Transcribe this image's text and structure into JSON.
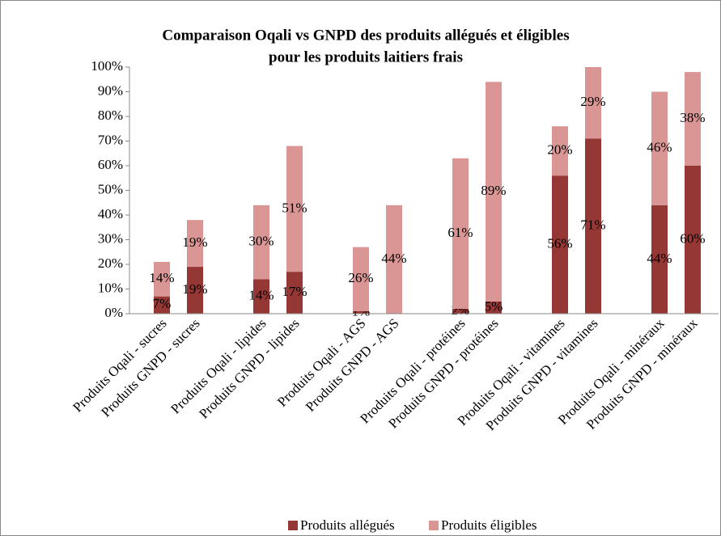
{
  "chart_data": {
    "type": "stacked_bar",
    "title": [
      "Comparaison Oqali vs GNPD des produits allégués et éligibles",
      "pour les produits laitiers frais"
    ],
    "categories": [
      "Produits Oqali - sucres",
      "Produits GNPD - sucres",
      "Produits Oqali - lipides",
      "Produits GNPD - lipides",
      "Produits Oqali - AGS",
      "Produits GNPD - AGS",
      "Produits Oqali - protéines",
      "Produits GNPD - protéines",
      "Produits Oqali - vitamines",
      "Produits GNPD - vitamines",
      "Produits Oqali - minéraux",
      "Produits GNPD - minéraux"
    ],
    "series": [
      {
        "name": "Produits allégués",
        "color": "#953735",
        "values": [
          7,
          19,
          14,
          17,
          1,
          null,
          2,
          5,
          56,
          71,
          44,
          60
        ],
        "value_labels": [
          "7%",
          "19%",
          "14%",
          "17%",
          "1%",
          null,
          "2%",
          "5%",
          "56%",
          "71%",
          "44%",
          "60%"
        ]
      },
      {
        "name": "Produits éligibles",
        "color": "#d99694",
        "values": [
          14,
          19,
          30,
          51,
          26,
          44,
          61,
          89,
          20,
          29,
          46,
          38
        ],
        "value_labels": [
          "14%",
          "19%",
          "30%",
          "51%",
          "26%",
          "44%",
          "61%",
          "89%",
          "20%",
          "29%",
          "46%",
          "38%"
        ]
      }
    ],
    "ylim": [
      0,
      100
    ],
    "yticks": [
      {
        "value": 0,
        "label": "0%"
      },
      {
        "value": 10,
        "label": "10%"
      },
      {
        "value": 20,
        "label": "20%"
      },
      {
        "value": 30,
        "label": "30%"
      },
      {
        "value": 40,
        "label": "40%"
      },
      {
        "value": 50,
        "label": "50%"
      },
      {
        "value": 60,
        "label": "60%"
      },
      {
        "value": 70,
        "label": "70%"
      },
      {
        "value": 80,
        "label": "80%"
      },
      {
        "value": 90,
        "label": "90%"
      },
      {
        "value": 100,
        "label": "100%"
      }
    ],
    "grid": false,
    "legend": "bottom"
  }
}
